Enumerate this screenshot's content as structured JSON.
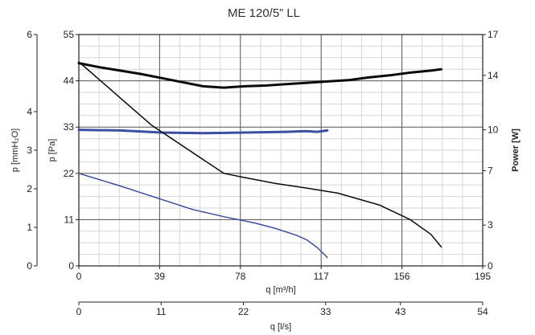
{
  "chart_data": {
    "type": "line",
    "title": "ME 120/5” LL",
    "x_axis": {
      "label": "q [m³/h]",
      "range": [
        0,
        195
      ],
      "ticks": [
        0,
        39,
        78,
        117,
        156,
        195
      ]
    },
    "x2_axis": {
      "label": "q [l/s]",
      "range": [
        0,
        54
      ],
      "ticks": [
        0,
        11,
        22,
        33,
        43,
        54
      ]
    },
    "y_left_outer": {
      "label": "p [mmH₂O]",
      "range": [
        0,
        6
      ],
      "ticks": [
        0,
        1,
        2,
        3,
        4,
        6
      ]
    },
    "y_left_inner": {
      "label": "p [Pa]",
      "range": [
        0,
        55
      ],
      "ticks": [
        0,
        11,
        22,
        33,
        44,
        55
      ]
    },
    "y_right": {
      "label": "Power [W]",
      "range": [
        0,
        17
      ],
      "ticks": [
        0,
        3,
        7,
        10,
        14,
        17
      ]
    },
    "grid": true,
    "series": [
      {
        "axis": "power",
        "color": "#0a0a0a",
        "width": 3,
        "x": [
          0,
          10,
          20,
          30,
          40,
          50,
          60,
          70,
          80,
          90,
          100,
          110,
          120,
          130,
          140,
          150,
          160,
          170,
          175
        ],
        "y": [
          14.9,
          14.6,
          14.35,
          14.1,
          13.8,
          13.5,
          13.2,
          13.1,
          13.2,
          13.25,
          13.35,
          13.45,
          13.55,
          13.65,
          13.85,
          14.0,
          14.2,
          14.35,
          14.45
        ]
      },
      {
        "axis": "power",
        "color": "#3b4ea0",
        "width": 3,
        "x": [
          0,
          20,
          40,
          60,
          80,
          100,
          110,
          115,
          120
        ],
        "y": [
          10.0,
          9.95,
          9.8,
          9.75,
          9.8,
          9.85,
          9.9,
          9.85,
          9.95
        ]
      },
      {
        "axis": "pressure",
        "color": "#0a0a0a",
        "width": 1.5,
        "x": [
          0,
          35,
          70,
          80,
          95,
          110,
          125,
          145,
          160,
          170,
          175
        ],
        "y": [
          48.5,
          33.5,
          22,
          21,
          19.6,
          18.5,
          17.3,
          14.5,
          11,
          7.5,
          4.5
        ]
      },
      {
        "axis": "pressure",
        "color": "#3b4ea0",
        "width": 1.5,
        "x": [
          0,
          20,
          40,
          55,
          70,
          85,
          95,
          105,
          110,
          115,
          120
        ],
        "y": [
          22,
          19,
          15.8,
          13.4,
          11.7,
          10.2,
          8.9,
          7.3,
          6.2,
          4.4,
          2.0
        ]
      }
    ]
  }
}
